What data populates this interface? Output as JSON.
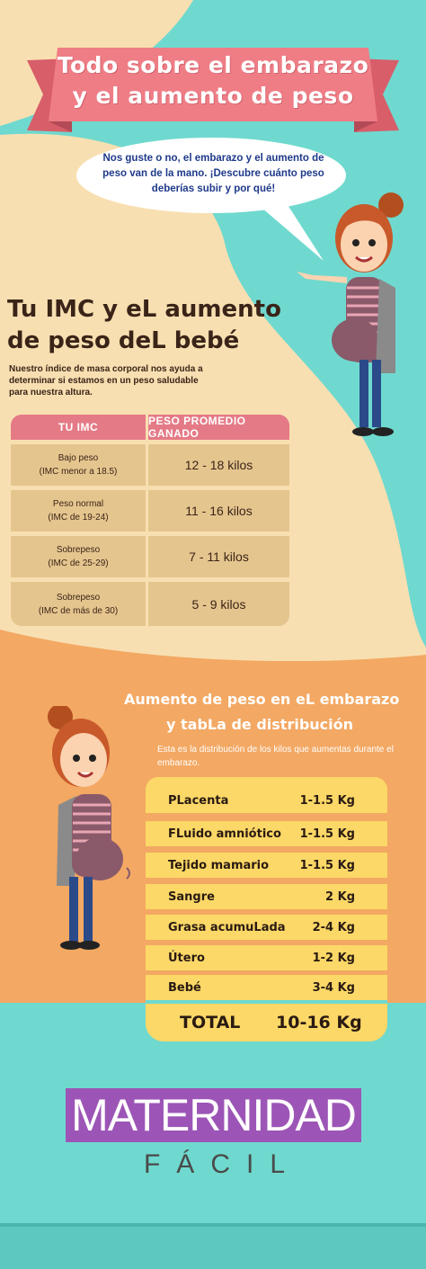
{
  "header": {
    "title_line1": "Todo sobre el embarazo",
    "title_line2": "y el aumento de peso"
  },
  "bubble": {
    "text": "Nos guste o no, el embarazo y el aumento de peso van de la mano. ¡Descubre cuánto peso deberías subir y por qué!"
  },
  "imc_section": {
    "title_line1": "Tu IMC y eL aumento",
    "title_line2": "de peso deL bebé",
    "intro": "Nuestro índice de masa corporal nos ayuda a determinar si estamos en un peso saludable para nuestra altura.",
    "col_imc": "TU IMC",
    "col_peso": "PESO PROMEDIO GANADO",
    "rows": [
      {
        "cat": "Bajo peso",
        "range": "(IMC menor a 18.5)",
        "gain": "12 - 18 kilos"
      },
      {
        "cat": "Peso normal",
        "range": "(IMC de 19-24)",
        "gain": "11 - 16 kilos"
      },
      {
        "cat": "Sobrepeso",
        "range": "(IMC de 25-29)",
        "gain": "7 - 11 kilos"
      },
      {
        "cat": "Sobrepeso",
        "range": "(IMC de más de 30)",
        "gain": "5 - 9 kilos"
      }
    ]
  },
  "distribution": {
    "title_line1": "Aumento de peso en eL embarazo",
    "title_line2": "y tabLa de distribución",
    "intro": "Esta es la distribución de los kilos que aumentas durante el embarazo.",
    "rows": [
      {
        "label": "PLacenta",
        "value": "1-1.5 Kg"
      },
      {
        "label": "FLuido amniótico",
        "value": "1-1.5 Kg"
      },
      {
        "label": "Tejido mamario",
        "value": "1-1.5 Kg"
      },
      {
        "label": "Sangre",
        "value": "2 Kg"
      },
      {
        "label": "Grasa acumuLada",
        "value": "2-4 Kg"
      },
      {
        "label": "Útero",
        "value": "1-2 Kg"
      },
      {
        "label": "Bebé",
        "value": "3-4 Kg"
      }
    ],
    "total_label": "TOTAL",
    "total_value": "10-16 Kg"
  },
  "logo": {
    "name": "MATERNIDAD",
    "sub": "FÁCIL"
  },
  "colors": {
    "teal": "#6fd9cf",
    "cream": "#f8dfb1",
    "ribbon": "#ef7d86",
    "orange": "#f3a863",
    "yellow": "#fbd867",
    "tan": "#e5c58e",
    "purple": "#9c55b6"
  }
}
